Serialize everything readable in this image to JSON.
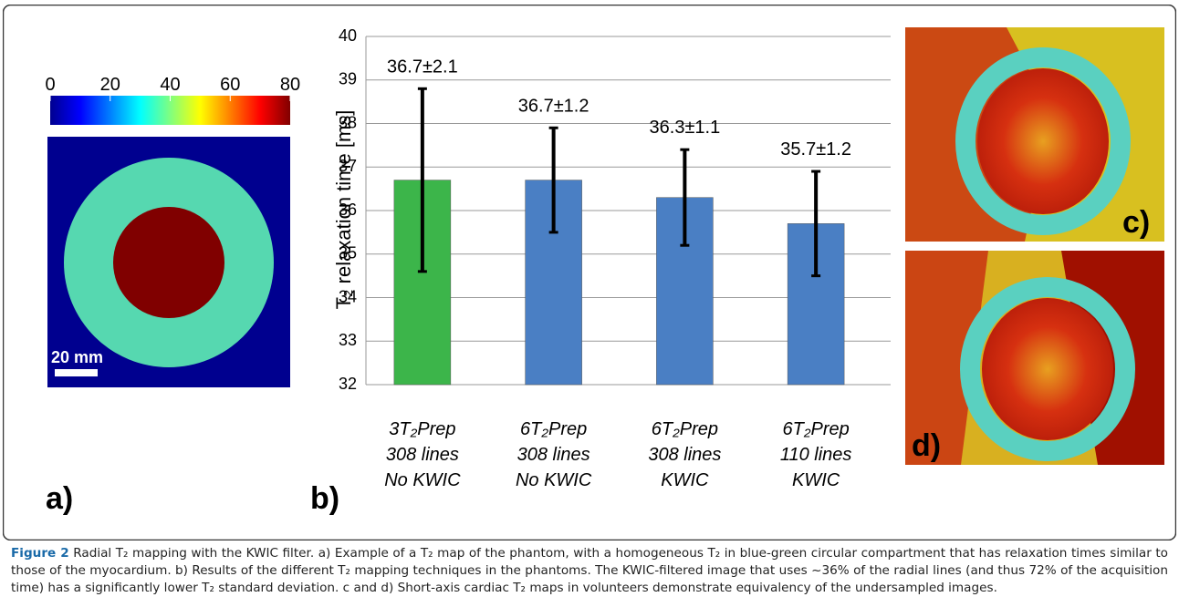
{
  "figure": {
    "panel_labels": [
      "a)",
      "b)",
      "c)",
      "d)"
    ],
    "colorbar": {
      "range": [
        0,
        80
      ],
      "ticks": [
        0,
        20,
        40,
        60,
        80
      ]
    },
    "scale_bar": "20 mm"
  },
  "chart_data": {
    "type": "bar",
    "y_label": "T₂ relaxation time [ms]",
    "categories": [
      [
        "3T₂Prep",
        "308 lines",
        "No KWIC"
      ],
      [
        "6T₂Prep",
        "308 lines",
        "No KWIC"
      ],
      [
        "6T₂Prep",
        "308 lines",
        "KWIC"
      ],
      [
        "6T₂Prep",
        "110 lines",
        "KWIC"
      ]
    ],
    "values": [
      36.7,
      36.7,
      36.3,
      35.7
    ],
    "errors": [
      2.1,
      1.2,
      1.1,
      1.2
    ],
    "value_labels": [
      "36.7±2.1",
      "36.7±1.2",
      "36.3±1.1",
      "35.7±1.2"
    ],
    "colors": [
      "#3cb54a",
      "#4a7fc4",
      "#4a7fc4",
      "#4a7fc4"
    ],
    "ylim": [
      32,
      40
    ],
    "yticks": [
      32,
      33,
      34,
      35,
      36,
      37,
      38,
      39,
      40
    ],
    "grid": true
  },
  "caption": {
    "label": "Figure 2",
    "text": "Radial T₂ mapping with the KWIC filter. a) Example of a T₂ map of the phantom, with a homogeneous T₂ in blue-green circular compartment that has relaxation times similar to those of the myocardium. b) Results of the different T₂ mapping techniques in the phantoms. The KWIC-filtered image that uses ~36% of the radial lines (and thus 72% of the acquisition time) has a significantly lower T₂ standard deviation. c and d) Short-axis cardiac T₂ maps in volunteers demonstrate equivalency of the undersampled images."
  }
}
